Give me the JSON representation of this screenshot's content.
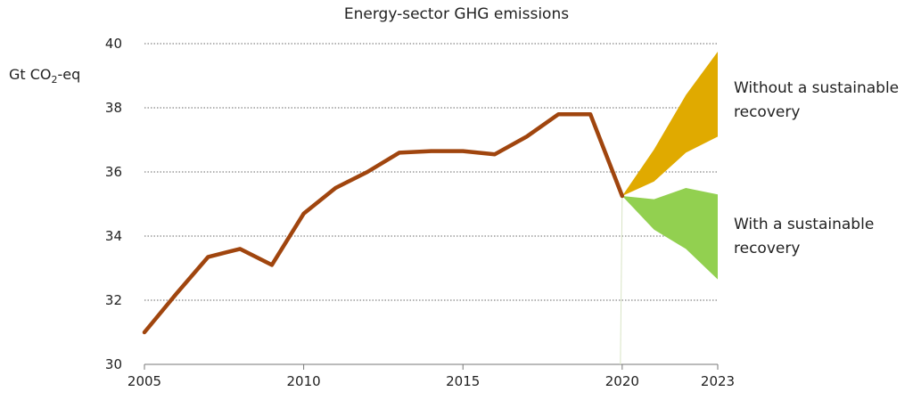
{
  "chart_data": {
    "type": "line",
    "title": "Energy-sector GHG emissions",
    "ylabel_prefix": "Gt CO",
    "ylabel_sub": "2",
    "ylabel_suffix": "-eq",
    "ylim": [
      30,
      40
    ],
    "xlim": [
      2005,
      2023
    ],
    "yticks": [
      "30",
      "32",
      "34",
      "36",
      "38",
      "40"
    ],
    "xticks": [
      "2005",
      "2010",
      "2015",
      "2020",
      "2023"
    ],
    "grid": true,
    "series": [
      {
        "x": [
          2005,
          2006,
          2007,
          2008,
          2009,
          2010,
          2011,
          2012,
          2013,
          2014,
          2015,
          2016,
          2017,
          2018,
          2019,
          2020
        ],
        "values": [
          31.0,
          32.2,
          33.35,
          33.6,
          33.1,
          34.7,
          35.5,
          36.0,
          36.6,
          36.65,
          36.65,
          36.55,
          37.1,
          37.8,
          37.8,
          35.25
        ],
        "color": "#a0450e"
      }
    ],
    "bands": [
      {
        "name_line1": "Without a sustainable",
        "name_line2": "recovery",
        "x": [
          2020,
          2021,
          2022,
          2023
        ],
        "upper": [
          35.25,
          36.7,
          38.4,
          39.75
        ],
        "lower": [
          35.25,
          35.7,
          36.6,
          37.1
        ],
        "color": "#e0aa00"
      },
      {
        "name_line1": "With a sustainable",
        "name_line2": "recovery",
        "x": [
          2020,
          2021,
          2022,
          2023
        ],
        "upper": [
          35.25,
          35.15,
          35.5,
          35.3
        ],
        "lower": [
          35.25,
          34.2,
          33.6,
          32.65
        ],
        "color": "#92d050"
      }
    ]
  }
}
